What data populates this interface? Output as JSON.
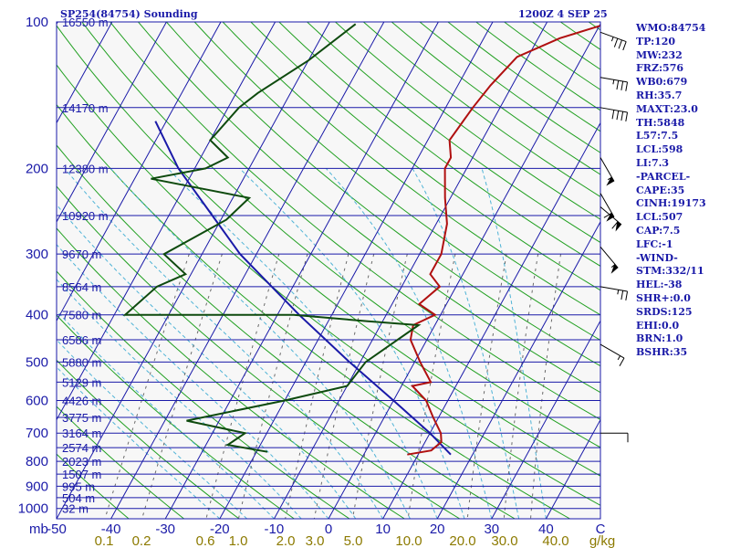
{
  "header": {
    "title": "SP254(84754) Sounding",
    "time": "1200Z  4 SEP 25"
  },
  "colors": {
    "blue": "#1a1aa8",
    "isotherm": "#1a1aa8",
    "dry_adiabat": "#22a022",
    "moist_adiabat": "#4fb3d6",
    "mixing_ratio": "#6b6b6b",
    "temperature": "#b01010",
    "dewpoint": "#0e4a0e",
    "parcel": "#1a1aa8",
    "mixing_label": "#8c7a00",
    "background": "#f7f7f7"
  },
  "chart_data": {
    "type": "skew-t",
    "pressure_ticks": [
      "100",
      "200",
      "300",
      "400",
      "500",
      "600",
      "700",
      "800",
      "900",
      "1000"
    ],
    "pressure_axis_unit": "mb",
    "temperature_ticks": [
      "-50",
      "-40",
      "-30",
      "-20",
      "-10",
      "0",
      "10",
      "20",
      "30",
      "40"
    ],
    "temperature_axis_unit": "C",
    "xlim_c": [
      -50,
      50
    ],
    "ylim_mb": [
      1050,
      100
    ],
    "mixing_ratio_labels": [
      "0.1",
      "0.2",
      "0.6",
      "1.0",
      "2.0",
      "3.0",
      "5.0",
      "10.0",
      "20.0",
      "30.0",
      "40.0"
    ],
    "mixing_ratio_unit": "g/kg",
    "height_levels": [
      {
        "p": 100,
        "label": "16550 m"
      },
      {
        "p": 150,
        "label": "14170 m"
      },
      {
        "p": 200,
        "label": "12380 m"
      },
      {
        "p": 250,
        "label": "10920 m"
      },
      {
        "p": 300,
        "label": "9670 m"
      },
      {
        "p": 350,
        "label": "8564 m"
      },
      {
        "p": 400,
        "label": "7580 m"
      },
      {
        "p": 450,
        "label": "6586 m"
      },
      {
        "p": 500,
        "label": "5880 m"
      },
      {
        "p": 550,
        "label": "5129 m"
      },
      {
        "p": 600,
        "label": "4426 m"
      },
      {
        "p": 650,
        "label": "3775 m"
      },
      {
        "p": 700,
        "label": "3164 m"
      },
      {
        "p": 750,
        "label": "2574 m"
      },
      {
        "p": 800,
        "label": "2023 m"
      },
      {
        "p": 850,
        "label": "1507 m"
      },
      {
        "p": 900,
        "label": "995 m"
      },
      {
        "p": 950,
        "label": "504 m"
      },
      {
        "p": 1000,
        "label": "32 m"
      }
    ],
    "temperature_profile": [
      {
        "p": 101,
        "t": 1
      },
      {
        "p": 108,
        "t": -6
      },
      {
        "p": 118,
        "t": -12
      },
      {
        "p": 135,
        "t": -14
      },
      {
        "p": 150,
        "t": -15
      },
      {
        "p": 175,
        "t": -16
      },
      {
        "p": 190,
        "t": -14
      },
      {
        "p": 200,
        "t": -14
      },
      {
        "p": 230,
        "t": -11
      },
      {
        "p": 260,
        "t": -8
      },
      {
        "p": 300,
        "t": -6
      },
      {
        "p": 330,
        "t": -6
      },
      {
        "p": 350,
        "t": -3
      },
      {
        "p": 380,
        "t": -5
      },
      {
        "p": 400,
        "t": -1
      },
      {
        "p": 420,
        "t": -4
      },
      {
        "p": 450,
        "t": -3
      },
      {
        "p": 500,
        "t": 1
      },
      {
        "p": 550,
        "t": 5
      },
      {
        "p": 560,
        "t": 2
      },
      {
        "p": 600,
        "t": 6
      },
      {
        "p": 650,
        "t": 9
      },
      {
        "p": 700,
        "t": 12
      },
      {
        "p": 730,
        "t": 13
      },
      {
        "p": 760,
        "t": 12
      },
      {
        "p": 775,
        "t": 8
      }
    ],
    "dewpoint_profile": [
      {
        "p": 101,
        "t": -45
      },
      {
        "p": 120,
        "t": -50
      },
      {
        "p": 140,
        "t": -56
      },
      {
        "p": 150,
        "t": -58
      },
      {
        "p": 175,
        "t": -60
      },
      {
        "p": 190,
        "t": -55
      },
      {
        "p": 200,
        "t": -58
      },
      {
        "p": 210,
        "t": -67
      },
      {
        "p": 230,
        "t": -47
      },
      {
        "p": 255,
        "t": -49
      },
      {
        "p": 300,
        "t": -57
      },
      {
        "p": 330,
        "t": -51
      },
      {
        "p": 350,
        "t": -55
      },
      {
        "p": 400,
        "t": -58
      },
      {
        "p": 400,
        "t": -27
      },
      {
        "p": 412,
        "t": -13
      },
      {
        "p": 420,
        "t": -3
      },
      {
        "p": 500,
        "t": -9
      },
      {
        "p": 560,
        "t": -10
      },
      {
        "p": 600,
        "t": -20
      },
      {
        "p": 660,
        "t": -36
      },
      {
        "p": 700,
        "t": -24
      },
      {
        "p": 740,
        "t": -26
      },
      {
        "p": 765,
        "t": -18
      }
    ],
    "parcel_profile": [
      {
        "p": 160,
        "t": -72
      },
      {
        "p": 200,
        "t": -63
      },
      {
        "p": 250,
        "t": -52
      },
      {
        "p": 300,
        "t": -43
      },
      {
        "p": 400,
        "t": -26
      },
      {
        "p": 500,
        "t": -12
      },
      {
        "p": 600,
        "t": 0
      },
      {
        "p": 700,
        "t": 10
      },
      {
        "p": 775,
        "t": 16
      }
    ],
    "wind_barbs": [
      {
        "p": 105,
        "dir": 290,
        "spd": 35
      },
      {
        "p": 130,
        "dir": 280,
        "spd": 35
      },
      {
        "p": 150,
        "dir": 280,
        "spd": 40
      },
      {
        "p": 190,
        "dir": 330,
        "spd": 55
      },
      {
        "p": 225,
        "dir": 330,
        "spd": 60
      },
      {
        "p": 240,
        "dir": 310,
        "spd": 60
      },
      {
        "p": 290,
        "dir": 320,
        "spd": 55
      },
      {
        "p": 350,
        "dir": 280,
        "spd": 25
      },
      {
        "p": 460,
        "dir": 300,
        "spd": 15
      },
      {
        "p": 700,
        "dir": 270,
        "spd": 10
      }
    ]
  },
  "indices": [
    "WMO:84754",
    "TP:120",
    "MW:232",
    "FRZ:576",
    "WB0:679",
    "RH:35.7",
    "MAXT:23.0",
    "TH:5848",
    "L57:7.5",
    "LCL:598",
    "LI:7.3",
    "-PARCEL-",
    "CAPE:35",
    "CINH:19173",
    "LCL:507",
    "CAP:7.5",
    "LFC:-1",
    "-WIND-",
    "STM:332/11",
    "HEL:-38",
    "SHR+:0.0",
    "SRDS:125",
    "EHI:0.0",
    "BRN:1.0",
    "BSHR:35"
  ]
}
